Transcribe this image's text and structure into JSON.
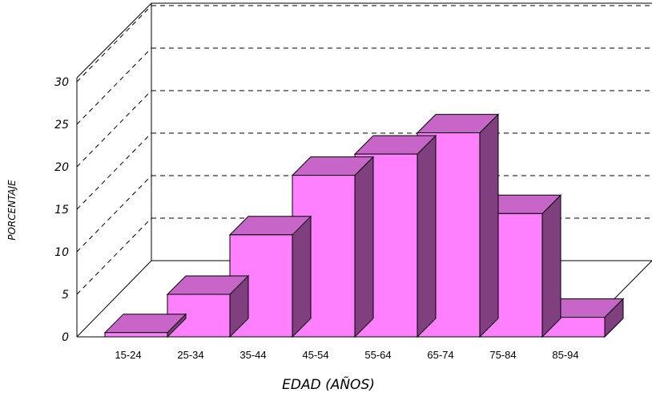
{
  "chart_data": {
    "type": "bar",
    "style": "3d",
    "categories": [
      "15-24",
      "25-34",
      "35-44",
      "45-54",
      "55-64",
      "65-74",
      "75-84",
      "85-94"
    ],
    "values": [
      0.5,
      5,
      12,
      19,
      21.5,
      24,
      14.5,
      2.3
    ],
    "xlabel": "EDAD (AÑOS)",
    "ylabel": "PORCENTAJE",
    "ylim": [
      0,
      30
    ],
    "yticks": [
      0,
      5,
      10,
      15,
      20,
      25,
      30
    ],
    "grid": true,
    "colors": {
      "bar_front": "#ff80ff",
      "bar_top": "#c766c8",
      "bar_side": "#80407f",
      "gridline": "#000000"
    }
  }
}
